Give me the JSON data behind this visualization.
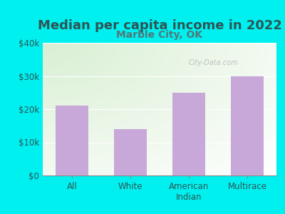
{
  "title": "Median per capita income in 2022",
  "subtitle": "Marble City, OK",
  "categories": [
    "All",
    "White",
    "American\nIndian",
    "Multirace"
  ],
  "values": [
    21000,
    14000,
    25000,
    30000
  ],
  "bar_color": "#c8a8d8",
  "title_color": "#2d5555",
  "subtitle_color": "#507878",
  "bg_color": "#00f0f0",
  "plot_bg_color_topleft": "#c8e8c0",
  "plot_bg_color_white": "#ffffff",
  "ylim": [
    0,
    40000
  ],
  "yticks": [
    0,
    10000,
    20000,
    30000,
    40000
  ],
  "ytick_labels": [
    "$0",
    "$10k",
    "$20k",
    "$30k",
    "$40k"
  ],
  "watermark": "City-Data.com",
  "title_fontsize": 13,
  "subtitle_fontsize": 10,
  "tick_fontsize": 8.5
}
